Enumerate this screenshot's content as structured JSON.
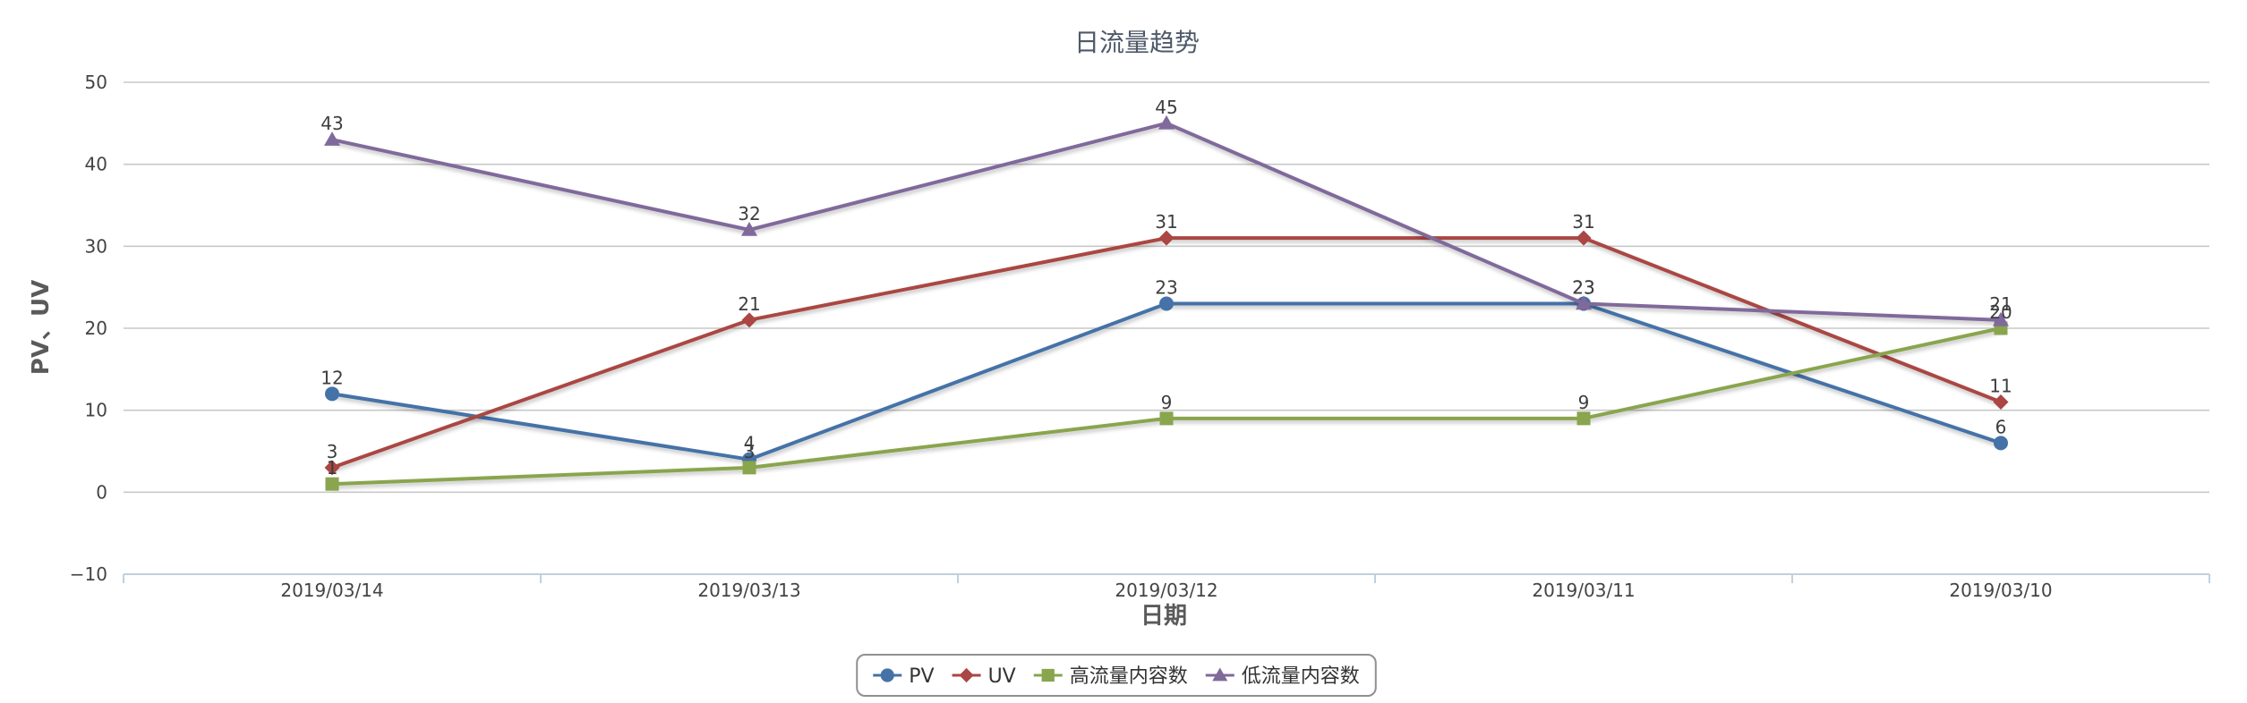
{
  "chart_data": {
    "type": "line",
    "title": "日流量趋势",
    "xlabel": "日期",
    "ylabel": "PV、UV",
    "categories": [
      "2019/03/14",
      "2019/03/13",
      "2019/03/12",
      "2019/03/11",
      "2019/03/10"
    ],
    "ylim": [
      -10,
      50
    ],
    "yticks": [
      -10,
      0,
      10,
      20,
      30,
      40,
      50
    ],
    "grid": true,
    "legend_position": "bottom-center",
    "series": [
      {
        "name": "PV",
        "values": [
          12,
          4,
          23,
          23,
          6
        ],
        "color": "#4572a7",
        "marker": "circle"
      },
      {
        "name": "UV",
        "values": [
          3,
          21,
          31,
          31,
          11
        ],
        "color": "#aa4643",
        "marker": "diamond"
      },
      {
        "name": "高流量内容数",
        "values": [
          1,
          3,
          9,
          9,
          20
        ],
        "color": "#89a54e",
        "marker": "square"
      },
      {
        "name": "低流量内容数",
        "values": [
          43,
          32,
          45,
          23,
          21
        ],
        "color": "#80699b",
        "marker": "triangle"
      }
    ]
  }
}
